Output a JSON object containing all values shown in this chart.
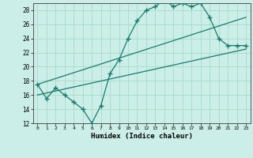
{
  "title": "",
  "xlabel": "Humidex (Indice chaleur)",
  "ylabel": "",
  "bg_color": "#cceee8",
  "grid_color": "#aaddcc",
  "line_color": "#1a7a6e",
  "xlim": [
    -0.5,
    23.5
  ],
  "ylim": [
    12,
    29
  ],
  "xticks": [
    0,
    1,
    2,
    3,
    4,
    5,
    6,
    7,
    8,
    9,
    10,
    11,
    12,
    13,
    14,
    15,
    16,
    17,
    18,
    19,
    20,
    21,
    22,
    23
  ],
  "yticks": [
    12,
    14,
    16,
    18,
    20,
    22,
    24,
    26,
    28
  ],
  "line1_x": [
    0,
    1,
    2,
    3,
    4,
    5,
    6,
    7,
    8,
    9,
    10,
    11,
    12,
    13,
    14,
    15,
    16,
    17,
    18,
    19,
    20,
    21,
    22,
    23
  ],
  "line1_y": [
    17.5,
    15.5,
    17.0,
    16.0,
    15.0,
    14.0,
    12.0,
    14.5,
    19.0,
    21.0,
    24.0,
    26.5,
    28.0,
    28.5,
    29.5,
    28.5,
    29.0,
    28.5,
    29.0,
    27.0,
    24.0,
    23.0,
    23.0,
    23.0
  ],
  "line2_x": [
    0,
    23
  ],
  "line2_y": [
    16.0,
    22.5
  ],
  "line3_x": [
    0,
    23
  ],
  "line3_y": [
    17.5,
    27.0
  ]
}
